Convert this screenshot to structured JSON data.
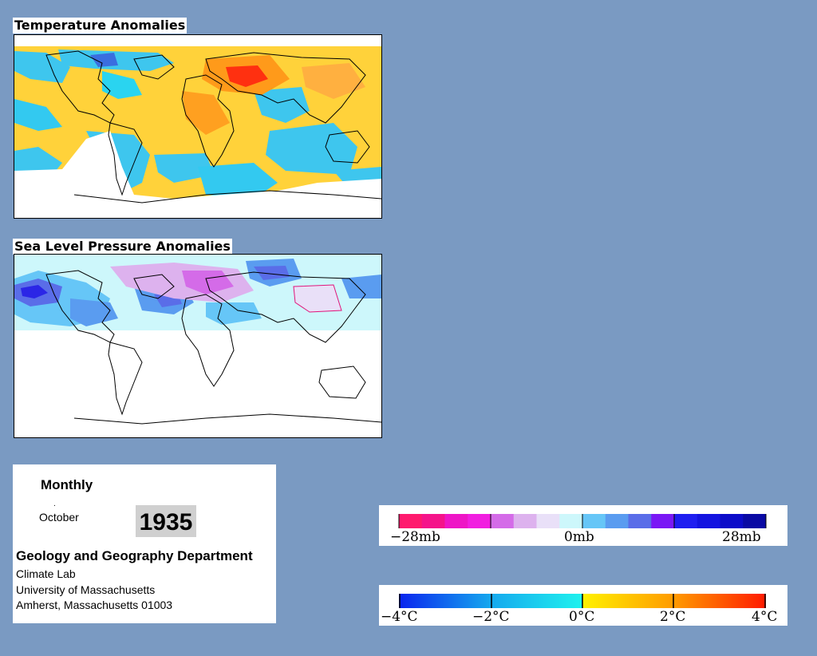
{
  "panels": {
    "temperature": {
      "title": "Temperature Anomalies"
    },
    "pressure": {
      "title": "Sea Level Pressure Anomalies"
    }
  },
  "info": {
    "frequency": "Monthly",
    "month": "October",
    "year": "1935",
    "department": "Geology and Geography Department",
    "lab": "Climate Lab",
    "university": "University of Massachusetts",
    "address": "Amherst, Massachusetts 01003"
  },
  "legends": {
    "pressure": {
      "labels": [
        "−28mb",
        "0mb",
        "28mb"
      ],
      "colors": [
        "#ff1a6e",
        "#f5148a",
        "#ee16c6",
        "#f11fe0",
        "#d46be8",
        "#ddb2ee",
        "#e9e0f8",
        "#cdf7fb",
        "#66c6f7",
        "#5a9cf0",
        "#5a6de8",
        "#7a18f5",
        "#1f1ef0",
        "#1414e0",
        "#0c0cc9",
        "#0a0aa4"
      ]
    },
    "temperature": {
      "labels": [
        "−4°C",
        "−2°C",
        "0°C",
        "2°C",
        "4°C"
      ],
      "gradient": [
        "#0a24ee",
        "#15a8ee",
        "#1ff2ee",
        "#fff200",
        "#ff9a00",
        "#ff1a00"
      ]
    }
  }
}
